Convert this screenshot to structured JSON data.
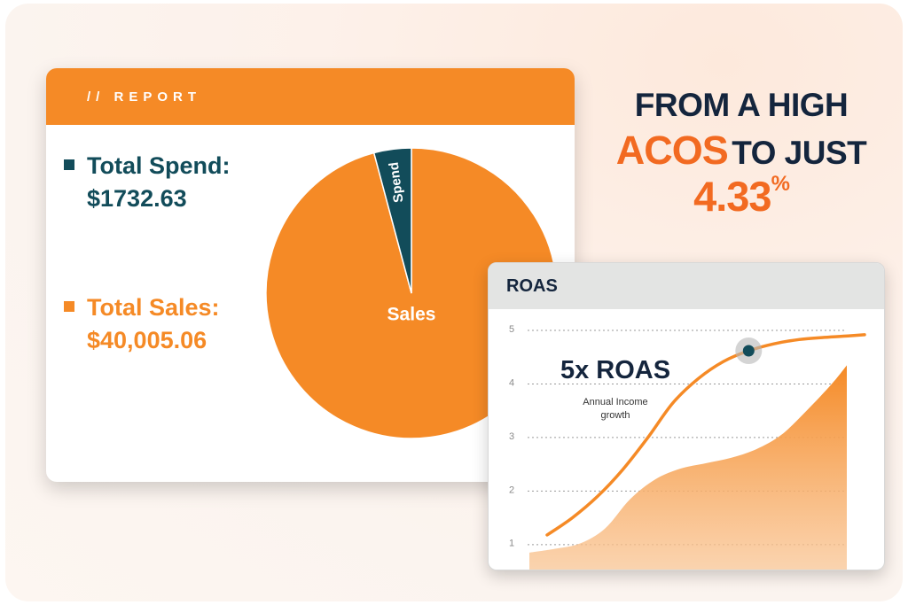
{
  "report": {
    "header": "// REPORT",
    "spend_label": "Total Spend:",
    "spend_value": "$1732.63",
    "sales_label": "Total Sales:",
    "sales_value": "$40,005.06"
  },
  "headline": {
    "line1": "FROM A HIGH",
    "acos": "ACOS",
    "line2_rest": "TO JUST",
    "value": "4.33",
    "value_suffix": "%"
  },
  "roas": {
    "header": "ROAS",
    "callout_title": "5x ROAS",
    "callout_sub1": "Annual Income",
    "callout_sub2": "growth"
  },
  "colors": {
    "orange": "#f58a26",
    "headline_orange": "#f26a21",
    "teal": "#124c5a",
    "navy": "#14253d"
  },
  "chart_data": [
    {
      "type": "pie",
      "slices": [
        {
          "name": "Spend",
          "value": 1732.63,
          "color": "#124c5a"
        },
        {
          "name": "Sales",
          "value": 40005.06,
          "color": "#f58a26"
        }
      ]
    },
    {
      "type": "line",
      "yticks": [
        1,
        2,
        3,
        4,
        5
      ],
      "ylim": [
        0.6,
        5.1
      ],
      "grid": true,
      "series": [
        {
          "style": "line",
          "x": [
            0,
            0.5,
            1,
            1.5,
            2,
            2.5,
            3,
            3.5,
            4,
            4.5,
            5,
            5.5,
            6,
            6.3
          ],
          "values": [
            1.18,
            1.5,
            1.9,
            2.4,
            3.0,
            3.65,
            4.1,
            4.42,
            4.62,
            4.75,
            4.83,
            4.87,
            4.9,
            4.92
          ]
        },
        {
          "style": "area",
          "x": [
            0,
            0.5,
            1,
            1.5,
            2,
            2.5,
            3,
            3.5,
            4,
            4.5,
            5,
            5.5,
            6,
            6.3
          ],
          "values": [
            0.85,
            0.92,
            1.02,
            1.3,
            1.85,
            2.22,
            2.42,
            2.52,
            2.62,
            2.78,
            3.05,
            3.5,
            4.0,
            4.35
          ]
        }
      ],
      "highlight": {
        "x": 4,
        "y": 4.62
      }
    }
  ]
}
